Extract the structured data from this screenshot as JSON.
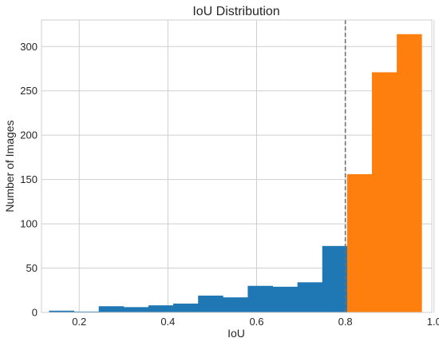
{
  "chart_data": {
    "type": "bar",
    "title": "IoU Distribution",
    "xlabel": "IoU",
    "ylabel": "Number of Images",
    "xlim": [
      0.115,
      0.995
    ],
    "ylim": [
      0,
      330
    ],
    "xticks": [
      0.2,
      0.4,
      0.6,
      0.8,
      1.0
    ],
    "xtick_labels": [
      "0.2",
      "0.4",
      "0.6",
      "0.8",
      "1.0"
    ],
    "yticks": [
      0,
      50,
      100,
      150,
      200,
      250,
      300
    ],
    "ytick_labels": [
      "0",
      "50",
      "100",
      "150",
      "200",
      "250",
      "300"
    ],
    "grid": true,
    "threshold_line": {
      "x": 0.8,
      "style": "dashed",
      "color": "#707070"
    },
    "bin_width": 0.056,
    "bins": [
      {
        "x0": 0.132,
        "value": 2,
        "color": "#1f77b4"
      },
      {
        "x0": 0.188,
        "value": 1,
        "color": "#1f77b4"
      },
      {
        "x0": 0.244,
        "value": 7,
        "color": "#1f77b4"
      },
      {
        "x0": 0.3,
        "value": 6,
        "color": "#1f77b4"
      },
      {
        "x0": 0.356,
        "value": 8,
        "color": "#1f77b4"
      },
      {
        "x0": 0.412,
        "value": 10,
        "color": "#1f77b4"
      },
      {
        "x0": 0.468,
        "value": 19,
        "color": "#1f77b4"
      },
      {
        "x0": 0.524,
        "value": 17,
        "color": "#1f77b4"
      },
      {
        "x0": 0.58,
        "value": 30,
        "color": "#1f77b4"
      },
      {
        "x0": 0.636,
        "value": 29,
        "color": "#1f77b4"
      },
      {
        "x0": 0.692,
        "value": 34,
        "color": "#1f77b4"
      },
      {
        "x0": 0.748,
        "value": 75,
        "color": "#1f77b4"
      },
      {
        "x0": 0.804,
        "value": 156,
        "color": "#ff7f0e"
      },
      {
        "x0": 0.86,
        "value": 271,
        "color": "#ff7f0e"
      },
      {
        "x0": 0.916,
        "value": 314,
        "color": "#ff7f0e"
      }
    ]
  }
}
